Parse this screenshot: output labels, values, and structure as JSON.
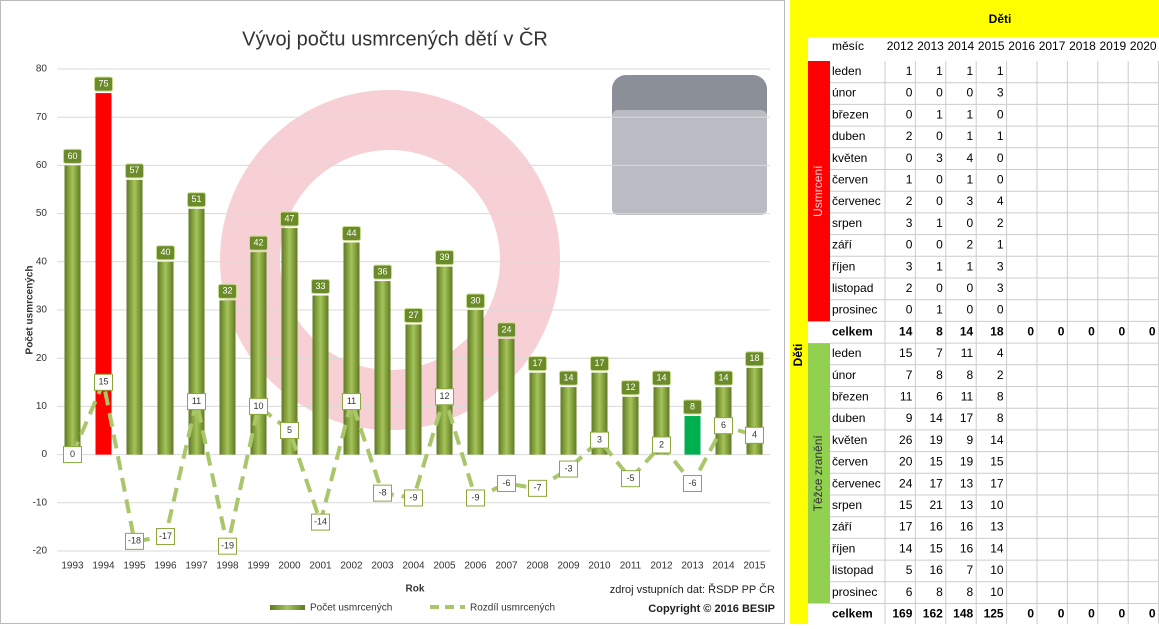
{
  "chart_data": {
    "type": "bar-line",
    "title": "Vývoj počtu usmrcených dětí v ČR",
    "y_label": "Počet usmrcených",
    "x_label": "Rok",
    "source": "zdroj vstupních dat: ŘSDP PP ČR",
    "copyright": "Copyright © 2016 BESIP",
    "categories": [
      "1993",
      "1994",
      "1995",
      "1996",
      "1997",
      "1998",
      "1999",
      "2000",
      "2001",
      "2002",
      "2003",
      "2004",
      "2005",
      "2006",
      "2007",
      "2008",
      "2009",
      "2010",
      "2011",
      "2012",
      "2013",
      "2014",
      "2015"
    ],
    "series": [
      {
        "name": "Počet usmrcených",
        "kind": "bar",
        "color": "#8aa83e",
        "colors": [
          "#8aa83e",
          "#ff0000",
          "#8aa83e",
          "#8aa83e",
          "#8aa83e",
          "#8aa83e",
          "#8aa83e",
          "#8aa83e",
          "#8aa83e",
          "#8aa83e",
          "#8aa83e",
          "#8aa83e",
          "#8aa83e",
          "#8aa83e",
          "#8aa83e",
          "#8aa83e",
          "#8aa83e",
          "#8aa83e",
          "#8aa83e",
          "#8aa83e",
          "#00b050",
          "#8aa83e",
          "#8aa83e"
        ],
        "values": [
          60,
          75,
          57,
          40,
          51,
          32,
          42,
          47,
          33,
          44,
          36,
          27,
          39,
          30,
          24,
          17,
          14,
          17,
          12,
          14,
          8,
          14,
          18
        ]
      },
      {
        "name": "Rozdíl usmrcených",
        "kind": "line",
        "color": "#a9c76a",
        "values": [
          0,
          15,
          -18,
          -17,
          11,
          -19,
          10,
          5,
          -14,
          11,
          -8,
          -9,
          12,
          -9,
          -6,
          -7,
          -3,
          3,
          -5,
          2,
          -6,
          6,
          4
        ]
      }
    ],
    "ylim": [
      -20,
      80
    ],
    "yticks": [
      -20,
      -10,
      0,
      10,
      20,
      30,
      40,
      50,
      60,
      70,
      80
    ],
    "grid": true,
    "legend": "bottom"
  },
  "table": {
    "title": "Děti",
    "side_label": "Děti",
    "header": [
      "měsíc",
      "2012",
      "2013",
      "2014",
      "2015",
      "2016",
      "2017",
      "2018",
      "2019",
      "2020"
    ],
    "groups": [
      {
        "label": "Usmrcení",
        "color": "#ff0000",
        "rows": [
          {
            "month": "leden",
            "values": [
              1,
              1,
              1,
              1
            ]
          },
          {
            "month": "únor",
            "values": [
              0,
              0,
              0,
              3
            ]
          },
          {
            "month": "březen",
            "values": [
              0,
              1,
              1,
              0
            ]
          },
          {
            "month": "duben",
            "values": [
              2,
              0,
              1,
              1
            ]
          },
          {
            "month": "květen",
            "values": [
              0,
              3,
              4,
              0
            ]
          },
          {
            "month": "červen",
            "values": [
              1,
              0,
              1,
              0
            ]
          },
          {
            "month": "červenec",
            "values": [
              2,
              0,
              3,
              4
            ]
          },
          {
            "month": "srpen",
            "values": [
              3,
              1,
              0,
              2
            ]
          },
          {
            "month": "září",
            "values": [
              0,
              0,
              2,
              1
            ]
          },
          {
            "month": "říjen",
            "values": [
              3,
              1,
              1,
              3
            ]
          },
          {
            "month": "listopad",
            "values": [
              2,
              0,
              0,
              3
            ]
          },
          {
            "month": "prosinec",
            "values": [
              0,
              1,
              0,
              0
            ]
          }
        ],
        "total": {
          "label": "celkem",
          "values": [
            14,
            8,
            14,
            18,
            0,
            0,
            0,
            0,
            0
          ]
        }
      },
      {
        "label": "Těžce zranění",
        "color": "#92d050",
        "rows": [
          {
            "month": "leden",
            "values": [
              15,
              7,
              11,
              4
            ]
          },
          {
            "month": "únor",
            "values": [
              7,
              8,
              8,
              2
            ]
          },
          {
            "month": "březen",
            "values": [
              11,
              6,
              11,
              8
            ]
          },
          {
            "month": "duben",
            "values": [
              9,
              14,
              17,
              8
            ]
          },
          {
            "month": "květen",
            "values": [
              26,
              19,
              9,
              14
            ]
          },
          {
            "month": "červen",
            "values": [
              20,
              15,
              19,
              15
            ]
          },
          {
            "month": "červenec",
            "values": [
              24,
              17,
              13,
              17
            ]
          },
          {
            "month": "srpen",
            "values": [
              15,
              21,
              13,
              10
            ]
          },
          {
            "month": "září",
            "values": [
              17,
              16,
              16,
              13
            ]
          },
          {
            "month": "říjen",
            "values": [
              14,
              15,
              16,
              14
            ]
          },
          {
            "month": "listopad",
            "values": [
              5,
              16,
              7,
              10
            ]
          },
          {
            "month": "prosinec",
            "values": [
              6,
              8,
              8,
              10
            ]
          }
        ],
        "total": {
          "label": "celkem",
          "values": [
            169,
            162,
            148,
            125,
            0,
            0,
            0,
            0,
            0
          ]
        }
      }
    ]
  }
}
